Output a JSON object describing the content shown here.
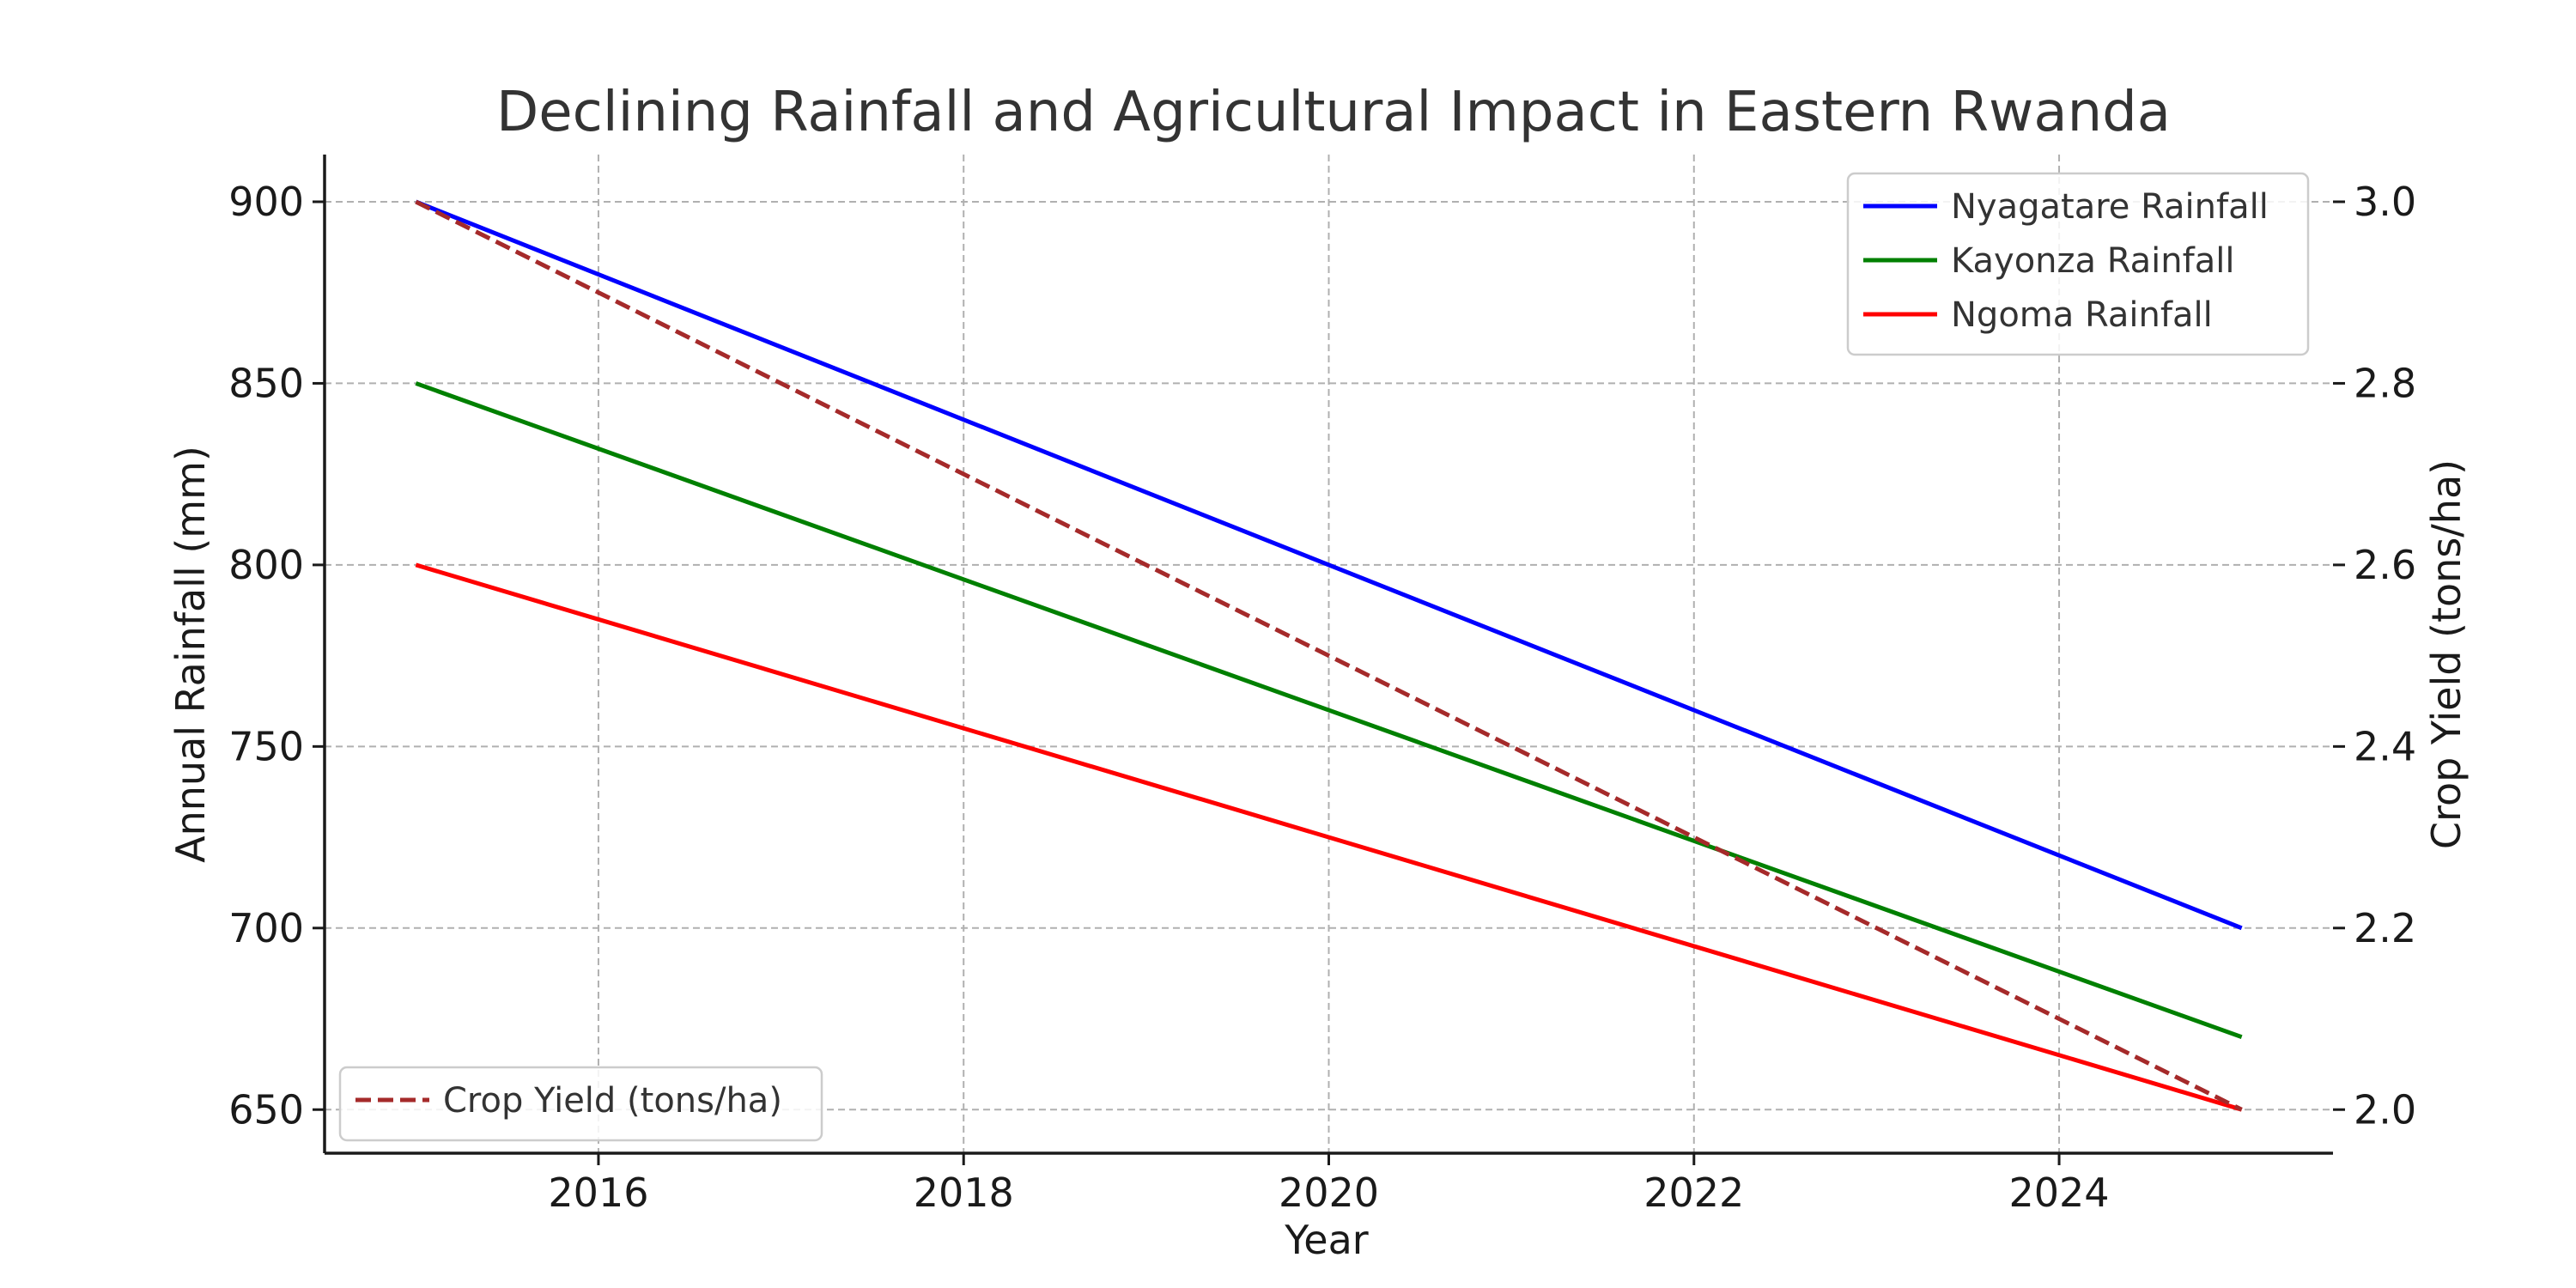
{
  "chart_data": {
    "type": "line",
    "title": "Declining Rainfall and Agricultural Impact in Eastern Rwanda",
    "xlabel": "Year",
    "ylabel": "Annual Rainfall (mm)",
    "y2label": "Crop Yield (tons/ha)",
    "x": [
      2015,
      2025
    ],
    "xlim": [
      2014.5,
      2025.5
    ],
    "ylim": [
      638,
      913
    ],
    "y2lim": [
      1.952,
      3.052
    ],
    "xticks": [
      "2016",
      "2018",
      "2020",
      "2022",
      "2024"
    ],
    "yticks": [
      "650",
      "700",
      "750",
      "800",
      "850",
      "900"
    ],
    "y2ticks": [
      "2.0",
      "2.2",
      "2.4",
      "2.6",
      "2.8",
      "3.0"
    ],
    "grid": true,
    "series": [
      {
        "name": "Nyagatare Rainfall",
        "axis": "left",
        "color": "#0000ff",
        "style": "solid",
        "values": [
          900,
          700
        ]
      },
      {
        "name": "Kayonza Rainfall",
        "axis": "left",
        "color": "#008000",
        "style": "solid",
        "values": [
          850,
          670
        ]
      },
      {
        "name": "Ngoma Rainfall",
        "axis": "left",
        "color": "#ff0000",
        "style": "solid",
        "values": [
          800,
          650
        ]
      },
      {
        "name": "Crop Yield (tons/ha)",
        "axis": "right",
        "color": "#a52a2a",
        "style": "dashed",
        "values": [
          3.0,
          2.0
        ]
      }
    ],
    "legend_left_axis": "top-right",
    "legend_right_axis": "bottom-left"
  }
}
